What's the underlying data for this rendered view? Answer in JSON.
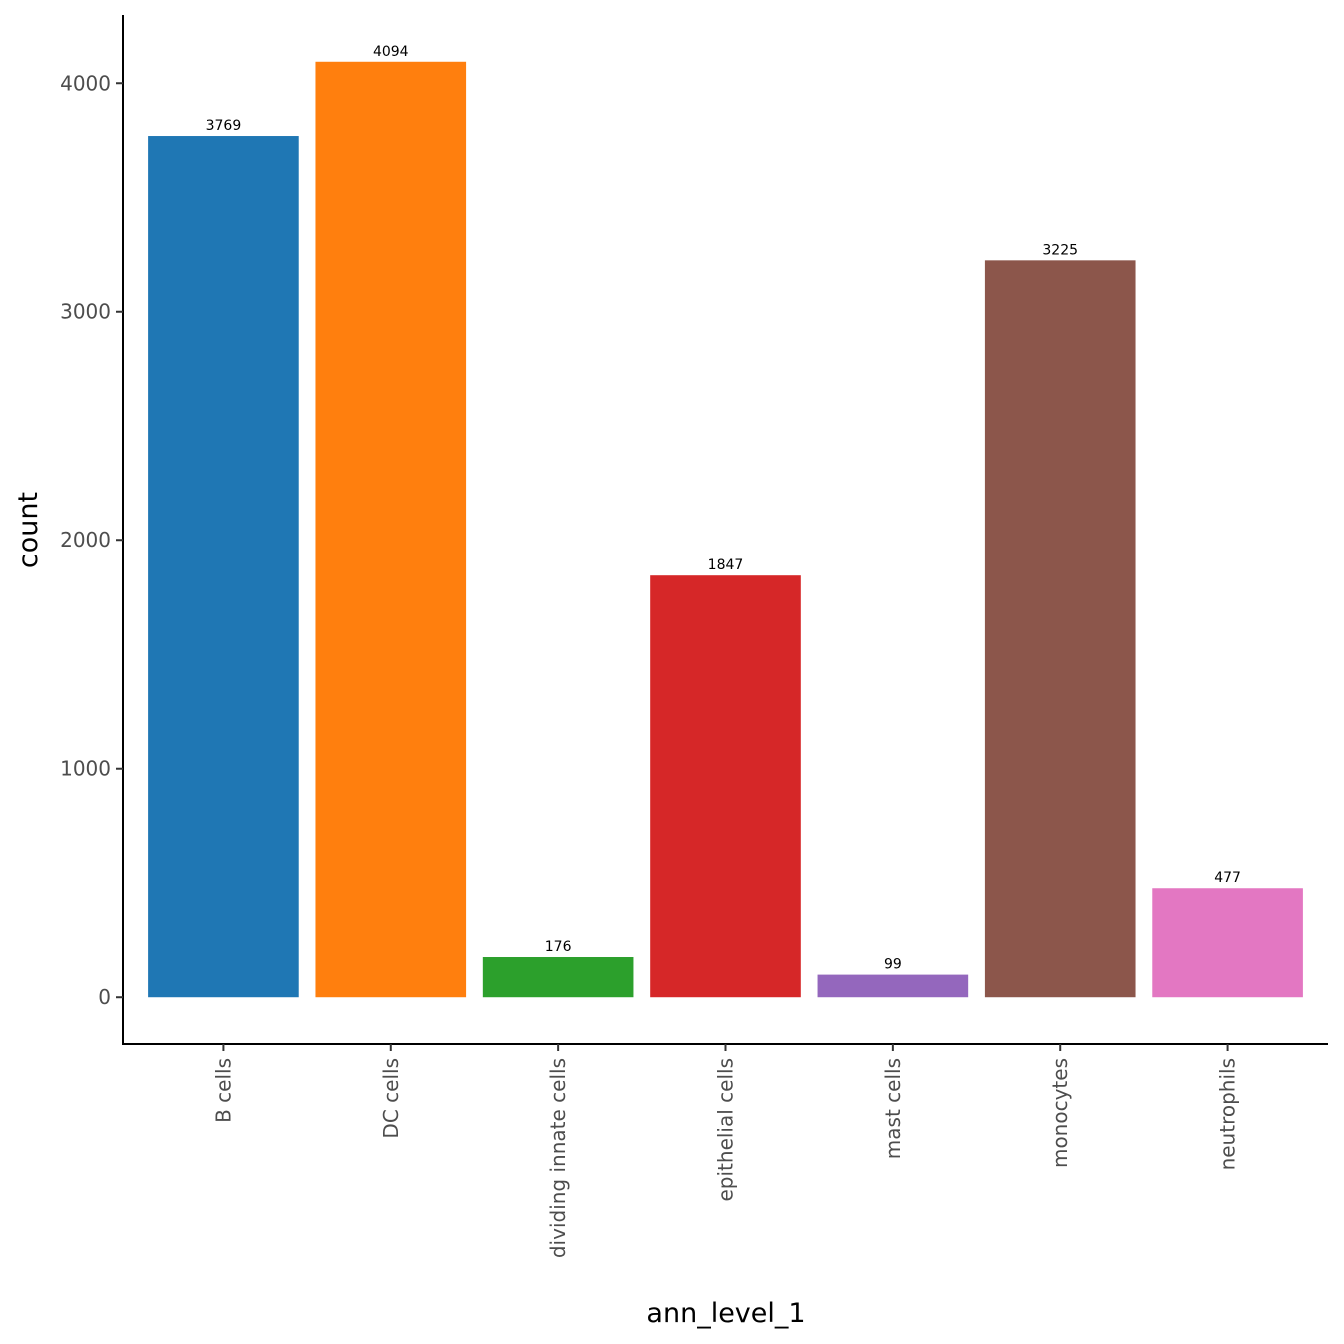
{
  "chart_data": {
    "type": "bar",
    "title": "",
    "xlabel": "ann_level_1",
    "ylabel": "count",
    "categories": [
      "B cells",
      "DC cells",
      "dividing innate cells",
      "epithelial cells",
      "mast cells",
      "monocytes",
      "neutrophils"
    ],
    "values": [
      3769,
      4094,
      176,
      1847,
      99,
      3225,
      477
    ],
    "data_labels": [
      "3769",
      "4094",
      "176",
      "1847",
      "99",
      "3225",
      "477"
    ],
    "colors": [
      "#1f77b4",
      "#ff7f0e",
      "#2ca02c",
      "#d62728",
      "#9467bd",
      "#8c564b",
      "#e377c2"
    ],
    "yticks": [
      0,
      1000,
      2000,
      3000,
      4000
    ],
    "ytick_labels": [
      "0",
      "1000",
      "2000",
      "3000",
      "4000"
    ],
    "ylim": [
      -204.7,
      4298.7
    ],
    "grid": false,
    "legend": "none"
  }
}
